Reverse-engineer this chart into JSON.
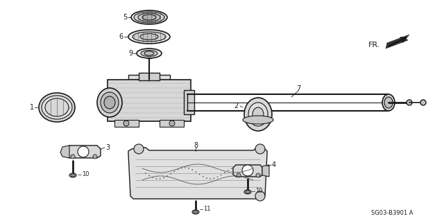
{
  "bg_color": "#ffffff",
  "line_color": "#1a1a1a",
  "fig_width": 6.4,
  "fig_height": 3.19,
  "dpi": 100,
  "diagram_code": "SG03-B3901 A"
}
